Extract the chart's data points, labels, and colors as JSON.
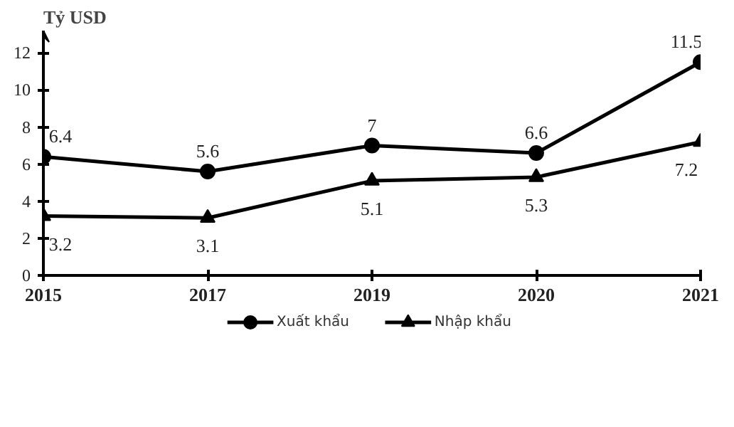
{
  "chart_data": {
    "type": "line",
    "ylabel": "Tỷ USD",
    "categories": [
      "2015",
      "2017",
      "2019",
      "2020",
      "2021"
    ],
    "series": [
      {
        "name": "Xuất khẩu",
        "color": "#000000",
        "marker": "circle",
        "values": [
          6.4,
          5.6,
          7,
          6.6,
          11.5
        ]
      },
      {
        "name": "Nhập khẩu",
        "color": "#000000",
        "marker": "triangle",
        "values": [
          3.2,
          3.1,
          5.1,
          5.3,
          7.2
        ]
      }
    ],
    "ylim": [
      0,
      13.2
    ],
    "yticks": [
      0,
      2,
      4,
      6,
      8,
      10,
      12
    ],
    "grid": false,
    "legend": "bottom",
    "data_labels": true,
    "line_style": "solid"
  }
}
